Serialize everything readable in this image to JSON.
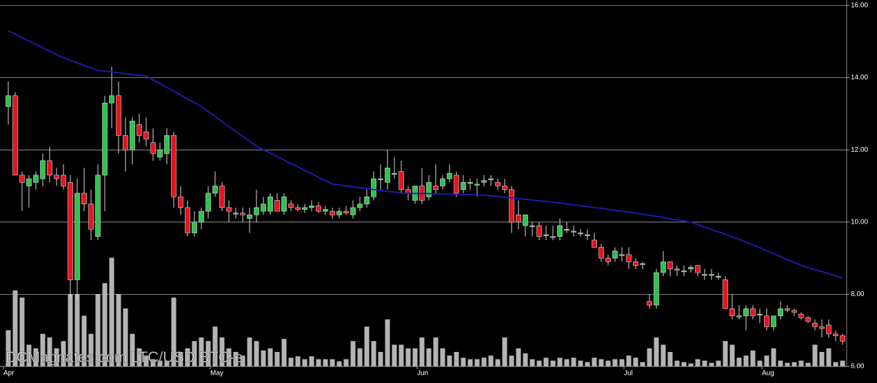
{
  "chart_data": {
    "type": "candlestick",
    "watermark": "DCMagnates.com LTC/USD BTC-e",
    "categories": [
      "Apr",
      null,
      null,
      null,
      null,
      null,
      null,
      null,
      null,
      null,
      null,
      null,
      null,
      null,
      null,
      null,
      null,
      null,
      null,
      null,
      null,
      null,
      null,
      null,
      null,
      null,
      null,
      null,
      null,
      null,
      "May",
      null,
      null,
      null,
      null,
      null,
      null,
      null,
      null,
      null,
      null,
      null,
      null,
      null,
      null,
      null,
      null,
      null,
      null,
      null,
      null,
      null,
      null,
      null,
      null,
      null,
      null,
      null,
      null,
      null,
      "Jun",
      null,
      null,
      null,
      null,
      null,
      null,
      null,
      null,
      null,
      null,
      null,
      null,
      null,
      null,
      null,
      null,
      null,
      null,
      null,
      null,
      null,
      null,
      null,
      null,
      null,
      null,
      null,
      null,
      null,
      "Jul",
      null,
      null,
      null,
      null,
      null,
      null,
      null,
      null,
      null,
      null,
      null,
      null,
      null,
      null,
      null,
      null,
      null,
      null,
      null,
      "Aug",
      null,
      null,
      null,
      null,
      null,
      null,
      null,
      null,
      null,
      null,
      null
    ],
    "open": [
      13.2,
      13.5,
      11.3,
      11.0,
      11.1,
      11.2,
      11.7,
      11.3,
      11.3,
      11.1,
      8.4,
      10.8,
      10.5,
      9.6,
      11.3,
      13.3,
      13.5,
      12.4,
      12.0,
      12.7,
      12.5,
      12.2,
      11.8,
      11.9,
      12.4,
      10.7,
      10.4,
      9.7,
      10.0,
      10.3,
      10.8,
      11.0,
      10.4,
      10.25,
      10.25,
      10.1,
      10.2,
      10.3,
      10.3,
      10.6,
      10.3,
      10.5,
      10.4,
      10.35,
      10.4,
      10.45,
      10.3,
      10.3,
      10.2,
      10.3,
      10.2,
      10.4,
      10.5,
      10.7,
      11.2,
      11.1,
      11.35,
      11.4,
      10.9,
      10.6,
      11.0,
      10.7,
      11.0,
      11.0,
      11.2,
      11.3,
      10.9,
      11.1,
      11.05,
      11.1,
      11.2,
      11.1,
      11.0,
      10.9,
      10.2,
      9.9,
      9.9,
      9.9,
      9.65,
      9.6,
      9.6,
      9.8,
      9.75,
      9.7,
      9.65,
      9.5,
      9.3,
      9.0,
      9.0,
      9.1,
      9.1,
      8.9,
      8.85,
      7.8,
      7.7,
      8.6,
      8.9,
      8.7,
      8.65,
      8.7,
      8.8,
      8.55,
      8.55,
      8.5,
      8.4,
      7.6,
      7.4,
      7.4,
      7.6,
      7.45,
      7.4,
      7.1,
      7.4,
      7.6,
      7.55,
      7.45,
      7.35,
      7.2,
      7.1,
      7.15,
      6.9,
      6.85
    ],
    "high": [
      13.9,
      13.6,
      11.4,
      11.3,
      11.4,
      11.9,
      12.1,
      11.5,
      11.6,
      11.3,
      11.2,
      11.5,
      10.9,
      11.6,
      13.5,
      14.3,
      13.9,
      12.9,
      12.9,
      13.0,
      12.9,
      12.6,
      12.2,
      12.6,
      12.5,
      11.0,
      10.6,
      10.3,
      10.4,
      11.0,
      11.4,
      11.1,
      10.6,
      10.4,
      10.4,
      10.4,
      10.9,
      10.7,
      10.8,
      10.8,
      10.8,
      10.6,
      10.5,
      10.5,
      10.6,
      10.55,
      10.45,
      10.4,
      10.4,
      10.45,
      10.6,
      10.7,
      10.9,
      11.4,
      11.6,
      12.0,
      11.8,
      11.7,
      11.0,
      11.0,
      11.5,
      11.3,
      11.6,
      11.3,
      11.6,
      11.4,
      11.3,
      11.2,
      11.2,
      11.3,
      11.3,
      11.2,
      11.2,
      11.0,
      10.6,
      10.2,
      10.0,
      10.0,
      9.9,
      9.9,
      10.1,
      10.0,
      9.9,
      9.8,
      9.8,
      9.7,
      9.4,
      9.1,
      9.3,
      9.3,
      9.3,
      9.0,
      8.9,
      8.0,
      8.7,
      9.2,
      8.9,
      8.8,
      8.8,
      8.8,
      8.8,
      8.7,
      8.7,
      8.6,
      8.5,
      8.0,
      7.7,
      7.7,
      7.7,
      7.6,
      7.6,
      7.4,
      7.8,
      7.7,
      7.6,
      7.5,
      7.4,
      7.3,
      7.3,
      7.3,
      7.0,
      6.9
    ],
    "low": [
      12.7,
      11.3,
      10.3,
      10.4,
      10.9,
      11.0,
      11.1,
      11.0,
      10.9,
      7.9,
      7.9,
      10.3,
      9.5,
      9.5,
      10.3,
      12.6,
      11.9,
      11.4,
      11.6,
      12.2,
      12.1,
      11.7,
      11.7,
      11.6,
      10.4,
      10.2,
      9.6,
      9.6,
      9.8,
      10.1,
      10.7,
      10.3,
      10.0,
      10.1,
      10.0,
      9.7,
      10.0,
      10.2,
      10.2,
      10.3,
      10.2,
      10.3,
      10.3,
      10.25,
      10.3,
      10.25,
      10.2,
      10.1,
      10.1,
      10.2,
      10.1,
      10.3,
      10.4,
      10.6,
      10.9,
      10.9,
      11.2,
      10.8,
      10.6,
      10.5,
      10.5,
      10.6,
      10.8,
      10.9,
      11.1,
      10.7,
      10.8,
      10.9,
      10.7,
      11.0,
      11.0,
      10.9,
      10.8,
      9.7,
      9.8,
      9.6,
      9.6,
      9.5,
      9.5,
      9.5,
      9.5,
      9.7,
      9.6,
      9.6,
      9.5,
      9.3,
      8.9,
      8.8,
      8.9,
      8.9,
      8.7,
      8.7,
      8.7,
      7.6,
      7.6,
      8.5,
      8.5,
      8.5,
      8.5,
      8.6,
      8.5,
      8.4,
      8.4,
      8.4,
      7.6,
      7.3,
      7.3,
      7.0,
      7.3,
      7.2,
      7.0,
      7.0,
      7.3,
      7.5,
      7.4,
      7.3,
      7.2,
      7.0,
      6.8,
      6.8,
      6.7,
      6.6
    ],
    "close": [
      13.5,
      11.3,
      11.1,
      11.2,
      11.3,
      11.7,
      11.3,
      11.2,
      11.0,
      8.4,
      10.8,
      10.5,
      9.8,
      11.3,
      13.3,
      13.5,
      12.4,
      12.0,
      12.8,
      12.4,
      12.3,
      11.9,
      12.0,
      12.4,
      10.7,
      10.4,
      9.7,
      10.0,
      10.3,
      10.8,
      11.0,
      10.4,
      10.3,
      10.25,
      10.2,
      10.2,
      10.4,
      10.5,
      10.7,
      10.3,
      10.7,
      10.4,
      10.35,
      10.4,
      10.45,
      10.3,
      10.35,
      10.2,
      10.3,
      10.25,
      10.4,
      10.5,
      10.7,
      11.2,
      11.2,
      11.5,
      11.35,
      10.9,
      10.8,
      11.0,
      10.6,
      11.1,
      10.9,
      11.2,
      11.35,
      10.8,
      11.1,
      11.1,
      11.05,
      11.15,
      11.2,
      11.0,
      10.9,
      10.0,
      10.0,
      10.2,
      9.9,
      9.6,
      9.65,
      9.6,
      9.9,
      9.8,
      9.75,
      9.7,
      9.65,
      9.3,
      9.0,
      8.9,
      9.2,
      9.1,
      8.9,
      8.8,
      8.85,
      7.7,
      8.6,
      8.9,
      8.7,
      8.7,
      8.65,
      8.75,
      8.6,
      8.55,
      8.55,
      8.5,
      7.6,
      7.4,
      7.4,
      7.6,
      7.4,
      7.45,
      7.1,
      7.4,
      7.6,
      7.55,
      7.5,
      7.35,
      7.25,
      7.1,
      7.05,
      6.9,
      6.85,
      6.7
    ],
    "volume": [
      50,
      105,
      95,
      30,
      25,
      45,
      40,
      25,
      35,
      100,
      100,
      70,
      45,
      100,
      115,
      150,
      100,
      80,
      45,
      25,
      15,
      10,
      8,
      8,
      95,
      20,
      25,
      35,
      40,
      35,
      55,
      40,
      25,
      20,
      15,
      40,
      35,
      22,
      25,
      20,
      38,
      12,
      14,
      10,
      14,
      10,
      10,
      10,
      7,
      10,
      35,
      25,
      55,
      35,
      20,
      65,
      30,
      30,
      25,
      25,
      40,
      25,
      40,
      25,
      15,
      20,
      12,
      10,
      10,
      12,
      15,
      10,
      40,
      15,
      25,
      18,
      10,
      8,
      12,
      8,
      12,
      10,
      12,
      8,
      6,
      12,
      10,
      8,
      10,
      10,
      15,
      12,
      6,
      25,
      40,
      30,
      20,
      8,
      6,
      4,
      10,
      8,
      5,
      8,
      35,
      30,
      12,
      15,
      22,
      8,
      15,
      25,
      8,
      5,
      6,
      8,
      5,
      30,
      20,
      25,
      6,
      8
    ],
    "ma": [
      15.3,
      15.21,
      15.11,
      15.02,
      14.93,
      14.83,
      14.74,
      14.64,
      14.55,
      14.48,
      14.41,
      14.34,
      14.27,
      14.2,
      14.18,
      14.16,
      14.14,
      14.11,
      14.09,
      14.07,
      14.05,
      13.94,
      13.84,
      13.73,
      13.63,
      13.52,
      13.41,
      13.31,
      13.2,
      13.06,
      12.93,
      12.79,
      12.65,
      12.51,
      12.38,
      12.24,
      12.1,
      12.0,
      11.91,
      11.81,
      11.72,
      11.62,
      11.53,
      11.43,
      11.34,
      11.24,
      11.15,
      11.05,
      11.03,
      11.0,
      10.98,
      10.95,
      10.93,
      10.9,
      10.88,
      10.85,
      10.83,
      10.8,
      10.8,
      10.79,
      10.79,
      10.79,
      10.78,
      10.78,
      10.77,
      10.77,
      10.76,
      10.76,
      10.75,
      10.75,
      10.73,
      10.71,
      10.69,
      10.67,
      10.65,
      10.63,
      10.61,
      10.59,
      10.57,
      10.55,
      10.53,
      10.5,
      10.48,
      10.45,
      10.43,
      10.4,
      10.38,
      10.35,
      10.33,
      10.3,
      10.28,
      10.25,
      10.22,
      10.19,
      10.16,
      10.13,
      10.09,
      10.06,
      10.03,
      10.0,
      9.93,
      9.86,
      9.79,
      9.73,
      9.66,
      9.59,
      9.52,
      9.45,
      9.37,
      9.29,
      9.21,
      9.13,
      9.05,
      8.96,
      8.88,
      8.8,
      8.74,
      8.68,
      8.63,
      8.57,
      8.51,
      8.45
    ],
    "up_color": "#2fc24e",
    "down_color": "#e5141e",
    "volume_color": "#b4b4b4",
    "ma_color": "#1c1ca8",
    "ylim": [
      6,
      16
    ],
    "yticks": [
      {
        "value": 6,
        "label": "6.00"
      },
      {
        "value": 8,
        "label": "8.00"
      },
      {
        "value": 10,
        "label": "10.00"
      },
      {
        "value": 12,
        "label": "12.00"
      },
      {
        "value": 14,
        "label": "14.00"
      },
      {
        "value": 16,
        "label": "16.00"
      }
    ],
    "grid": true
  }
}
